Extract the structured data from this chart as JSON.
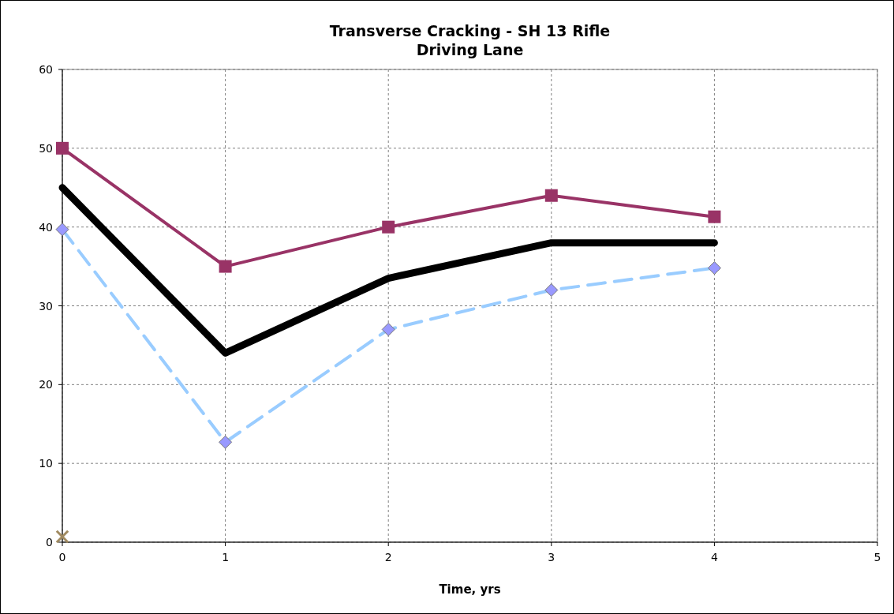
{
  "chart_data": {
    "type": "line",
    "title": "Transverse Cracking - SH 13 Rifle\nDriving Lane",
    "xlabel": "Time, yrs",
    "x": [
      0,
      1,
      2,
      3,
      4
    ],
    "xlim": [
      0,
      5
    ],
    "xticks": [
      0,
      1,
      2,
      3,
      4,
      5
    ],
    "ylim": [
      0,
      60
    ],
    "yticks": [
      0,
      10,
      20,
      30,
      40,
      50,
      60
    ],
    "grid": true,
    "series": [
      {
        "color": "#993366",
        "values": [
          50,
          35,
          40,
          44,
          41.3
        ],
        "marker": "square",
        "line_style": "solid"
      },
      {
        "color": "#000000",
        "values": [
          45,
          24,
          33.5,
          38,
          38
        ],
        "marker": "none",
        "line_style": "solid"
      },
      {
        "color": "#99ccff",
        "values": [
          39.7,
          12.7,
          27,
          32,
          34.8
        ],
        "marker": "diamond",
        "line_style": "dashed"
      },
      {
        "type": "scatter",
        "color": "#a08a60",
        "x": [
          0
        ],
        "values": [
          0.7
        ],
        "marker": "cross"
      }
    ]
  }
}
